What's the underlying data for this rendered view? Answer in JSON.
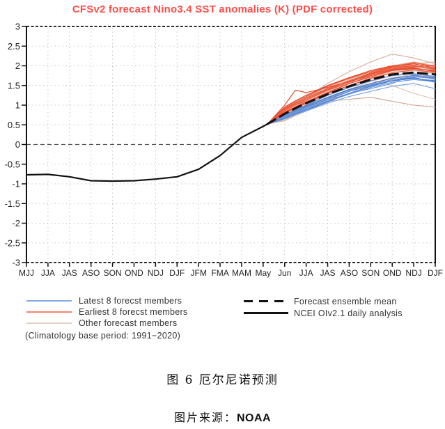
{
  "title": {
    "text": "CFSv2 forecast Nino3.4 SST anomalies (K) (PDF corrected)",
    "color": "#fb4e49"
  },
  "legend": {
    "left": [
      {
        "label": "Latest 8 forecst members",
        "color": "#85aae4",
        "style": "solid"
      },
      {
        "label": "Earliest 8 forecst members",
        "color": "#f58468",
        "style": "solid"
      },
      {
        "label": "Other forecast members",
        "color": "#e6cfc4",
        "style": "solid"
      }
    ],
    "right": [
      {
        "label": "Forecast ensemble mean",
        "color": "#111111",
        "style": "dashed"
      },
      {
        "label": "NCEI OIv2.1 daily analysis",
        "color": "#111111",
        "style": "solid"
      }
    ],
    "note": "(Climatology base period: 1991−2020)"
  },
  "captions": {
    "figure": "图 6 厄尔尼诺预测",
    "source_prefix": "图片来源：",
    "source_name": "NOAA"
  },
  "chart_data": {
    "type": "line",
    "title": "CFSv2 forecast Nino3.4 SST anomalies (K) (PDF corrected)",
    "xlabel": "",
    "ylabel": "",
    "ylim": [
      -3,
      3
    ],
    "y_ticks": [
      3,
      2.5,
      2,
      1.5,
      1,
      0.5,
      0,
      -0.5,
      -1,
      -1.5,
      -2,
      -2.5,
      -3
    ],
    "grid": "dotted",
    "legend_position": "below",
    "x_tick_labels": [
      "MJJ",
      "JJA",
      "JAS",
      "ASO",
      "SON",
      "OND",
      "NDJ",
      "DJF",
      "JFM",
      "FMA",
      "MAM",
      "May",
      "Jun",
      "JJA",
      "JAS",
      "ASO",
      "SON",
      "OND",
      "NDJ",
      "DJF"
    ],
    "observed": {
      "name": "NCEI OIv2.1 daily analysis",
      "color": "#111111",
      "x": [
        0,
        1,
        2,
        3,
        4,
        5,
        6,
        7,
        8,
        9,
        10,
        11,
        11.2
      ],
      "y": [
        -0.77,
        -0.76,
        -0.82,
        -0.92,
        -0.93,
        -0.92,
        -0.88,
        -0.82,
        -0.63,
        -0.28,
        0.18,
        0.46,
        0.52
      ]
    },
    "fan_x": [
      11.2,
      12,
      12.5,
      13,
      14,
      15,
      16,
      17,
      18,
      19
    ],
    "ensemble_mean": {
      "name": "Forecast ensemble mean",
      "color": "#111111",
      "y": [
        0.52,
        0.78,
        0.92,
        1.05,
        1.28,
        1.48,
        1.65,
        1.78,
        1.83,
        1.78
      ]
    },
    "earliest8": {
      "name": "Earliest 8 forecst members",
      "colors": [
        "#e63c1e",
        "#ea4f2e",
        "#f0563a",
        "#e8482a",
        "#f2623f",
        "#e54023",
        "#ed5a33",
        "#e94c2c"
      ],
      "members": [
        [
          0.52,
          0.95,
          1.11,
          1.25,
          1.5,
          1.7,
          1.88,
          2.0,
          2.05,
          1.95
        ],
        [
          0.52,
          0.9,
          1.05,
          1.18,
          1.42,
          1.62,
          1.8,
          1.95,
          2.0,
          1.92
        ],
        [
          0.52,
          0.85,
          1.0,
          1.12,
          1.38,
          1.58,
          1.78,
          1.92,
          1.97,
          2.02
        ],
        [
          0.52,
          1.0,
          1.38,
          1.32,
          1.45,
          1.6,
          1.75,
          1.9,
          1.95,
          1.85
        ],
        [
          0.52,
          0.88,
          1.02,
          1.15,
          1.4,
          1.62,
          1.82,
          1.97,
          2.02,
          1.9
        ],
        [
          0.52,
          0.82,
          0.96,
          1.08,
          1.32,
          1.55,
          1.72,
          1.88,
          1.93,
          1.88
        ],
        [
          0.52,
          0.92,
          1.08,
          1.22,
          1.48,
          1.68,
          1.85,
          1.98,
          2.08,
          1.98
        ],
        [
          0.52,
          0.8,
          0.93,
          1.05,
          1.3,
          1.5,
          1.68,
          1.82,
          1.9,
          1.83
        ]
      ]
    },
    "latest8": {
      "name": "Latest 8 forecst members",
      "colors": [
        "#4d7fd0",
        "#6b98dc",
        "#3f74c8",
        "#7aa6e2",
        "#5588d4",
        "#6f9ad8",
        "#4a7ecf",
        "#6290d8"
      ],
      "members": [
        [
          0.52,
          0.7,
          0.83,
          0.95,
          1.15,
          1.35,
          1.5,
          1.62,
          1.68,
          1.62
        ],
        [
          0.52,
          0.68,
          0.8,
          0.9,
          1.1,
          1.28,
          1.45,
          1.58,
          1.65,
          1.6
        ],
        [
          0.52,
          0.72,
          0.86,
          0.98,
          1.2,
          1.4,
          1.55,
          1.68,
          1.75,
          1.7
        ],
        [
          0.52,
          0.65,
          0.76,
          0.85,
          1.05,
          1.22,
          1.35,
          1.48,
          1.55,
          1.42
        ],
        [
          0.52,
          0.75,
          0.88,
          1.0,
          1.25,
          1.45,
          1.62,
          1.75,
          1.8,
          1.73
        ],
        [
          0.52,
          0.7,
          0.82,
          0.92,
          1.12,
          1.3,
          1.42,
          1.55,
          1.78,
          1.65
        ],
        [
          0.52,
          0.66,
          0.78,
          0.88,
          1.08,
          1.3,
          1.48,
          1.62,
          1.7,
          1.58
        ],
        [
          0.52,
          0.73,
          0.86,
          0.97,
          1.18,
          1.38,
          1.52,
          1.65,
          1.72,
          1.68
        ]
      ]
    },
    "other": {
      "name": "Other forecast members",
      "colors": [
        "#d8ae9e",
        "#d3a491",
        "#e0bfb2",
        "#d9b3a6",
        "#cda08e",
        "#e3c6ba",
        "#d5a998",
        "#dcb8aa",
        "#d0a08f",
        "#e0c0b4",
        "#d7ad9c",
        "#dbb5a8",
        "#d2a392",
        "#debcae"
      ],
      "members": [
        [
          0.52,
          0.85,
          1.03,
          1.2,
          1.55,
          1.85,
          2.1,
          2.3,
          2.2,
          2.05
        ],
        [
          0.52,
          0.7,
          0.83,
          0.95,
          1.1,
          1.15,
          1.2,
          1.1,
          1.0,
          0.95
        ],
        [
          0.52,
          0.8,
          0.95,
          1.1,
          1.3,
          1.5,
          1.65,
          1.5,
          1.3,
          1.15
        ],
        [
          0.52,
          0.9,
          1.05,
          1.2,
          1.45,
          1.65,
          1.85,
          2.0,
          2.1,
          2.0
        ],
        [
          0.52,
          0.75,
          0.9,
          1.05,
          1.3,
          1.55,
          1.75,
          1.9,
          1.95,
          1.85
        ],
        [
          0.52,
          0.65,
          0.78,
          0.9,
          1.15,
          1.4,
          1.6,
          1.75,
          1.85,
          1.8
        ],
        [
          0.52,
          0.85,
          1.0,
          1.15,
          1.4,
          1.6,
          1.8,
          1.95,
          2.0,
          1.95
        ],
        [
          0.52,
          0.6,
          0.73,
          0.85,
          1.1,
          1.3,
          1.5,
          1.65,
          1.7,
          1.6
        ],
        [
          0.52,
          0.78,
          0.93,
          1.08,
          1.35,
          1.58,
          1.78,
          1.92,
          1.98,
          1.9
        ],
        [
          0.52,
          0.7,
          0.85,
          1.0,
          1.25,
          1.48,
          1.68,
          1.82,
          1.88,
          1.82
        ],
        [
          0.52,
          0.88,
          1.03,
          1.18,
          1.42,
          1.62,
          1.82,
          1.98,
          2.05,
          2.1
        ],
        [
          0.52,
          0.62,
          0.75,
          0.88,
          1.12,
          1.35,
          1.55,
          1.7,
          1.78,
          1.72
        ],
        [
          0.52,
          0.8,
          0.96,
          1.12,
          1.38,
          1.6,
          1.78,
          1.93,
          2.0,
          1.92
        ],
        [
          0.52,
          0.72,
          0.87,
          1.02,
          1.28,
          1.5,
          1.7,
          1.85,
          1.92,
          1.87
        ]
      ]
    },
    "style_colors": {
      "grid_dots": "#c4c4c4",
      "zero_line": "#555555",
      "frame": "#2b2b2b",
      "axis_text": "#222222"
    }
  }
}
